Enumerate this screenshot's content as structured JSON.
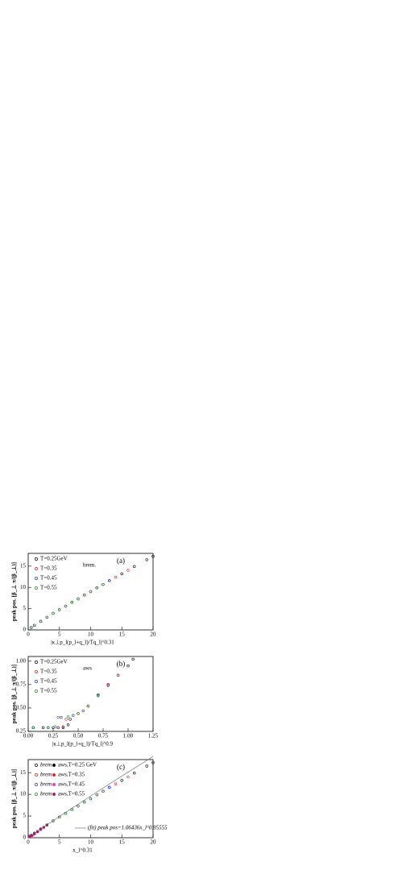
{
  "chart_data": [
    {
      "type": "scatter",
      "panel_label": "(a)",
      "annotation": "brem.",
      "x_label": "|κ⊥p_l(p_l+q_l)/Tq_l|^0.31",
      "y_label": "peak pos. [β_⊥ π/(β_⊥)]",
      "xlim": [
        0,
        20
      ],
      "ylim": [
        0,
        18
      ],
      "xticks": [
        0,
        5,
        10,
        15,
        20
      ],
      "yticks": [
        0,
        5,
        10,
        15
      ],
      "series": [
        {
          "name": "T=0.25GeV",
          "color": "#000000",
          "x": [
            0.5,
            1,
            2,
            3,
            5,
            7,
            9,
            11,
            13,
            15,
            17,
            19,
            20
          ],
          "values": [
            0.56,
            1.06,
            2.02,
            2.95,
            4.75,
            6.5,
            8.2,
            9.9,
            11.6,
            13.2,
            14.9,
            16.5,
            17.3
          ]
        },
        {
          "name": "T=0.35",
          "color": "#e8202a",
          "x": [
            0.5,
            1,
            2,
            4,
            6,
            8,
            10,
            12,
            14,
            16
          ],
          "values": [
            0.56,
            1.06,
            2.02,
            3.9,
            5.6,
            7.3,
            9.0,
            10.7,
            12.4,
            14.0
          ]
        },
        {
          "name": "T=0.45",
          "color": "#2030d0",
          "x": [
            0.5,
            1,
            2,
            4,
            6,
            8,
            10,
            12,
            13
          ],
          "values": [
            0.56,
            1.06,
            2.02,
            3.9,
            5.6,
            7.3,
            9.0,
            10.7,
            11.6
          ]
        },
        {
          "name": "T=0.55",
          "color": "#2a8a2a",
          "x": [
            0.5,
            1,
            2,
            3,
            4,
            5,
            6,
            7,
            8,
            9,
            10,
            11,
            12
          ],
          "values": [
            0.56,
            1.06,
            2.02,
            2.95,
            3.9,
            4.75,
            5.6,
            6.5,
            7.3,
            8.2,
            9.0,
            9.9,
            10.7
          ]
        }
      ]
    },
    {
      "type": "scatter",
      "panel_label": "(b)",
      "annotation": "aws",
      "x_label": "|κ⊥p_l(p_l+q_l)/Tq_l|^0.9",
      "y_label": "peak pos. [β_⊥ π/(β_⊥)]",
      "xlim": [
        0,
        1.25
      ],
      "ylim": [
        0.25,
        1.05
      ],
      "xticks": [
        {
          "value": 0,
          "label": "0.00"
        },
        0.25,
        {
          "value": 0.5,
          "label": "0.50"
        },
        0.75,
        {
          "value": 1,
          "label": "1.00"
        },
        1.25
      ],
      "yticks": [
        0.25,
        {
          "value": 0.5,
          "label": "0.50"
        },
        0.75,
        {
          "value": 1,
          "label": "1.00"
        }
      ],
      "series": [
        {
          "name": "T=0.25GeV",
          "color": "#000000",
          "x": [
            0.05,
            0.15,
            0.25,
            0.35,
            0.4,
            0.42,
            0.5,
            0.6,
            0.7,
            0.8,
            0.9,
            1.0,
            1.05
          ],
          "values": [
            0.29,
            0.29,
            0.29,
            0.29,
            0.32,
            0.38,
            0.44,
            0.52,
            0.64,
            0.75,
            0.85,
            0.95,
            1.02
          ]
        },
        {
          "name": "T=0.35",
          "color": "#e8202a",
          "x": [
            0.05,
            0.2,
            0.3,
            0.35,
            0.38,
            0.5,
            0.6,
            0.8,
            0.9
          ],
          "values": [
            0.29,
            0.29,
            0.29,
            0.3,
            0.38,
            0.44,
            0.52,
            0.75,
            0.85
          ]
        },
        {
          "name": "T=0.45",
          "color": "#2030d0",
          "x": [
            0.05,
            0.2,
            0.3,
            0.33,
            0.45,
            0.55,
            0.7,
            0.8
          ],
          "values": [
            0.29,
            0.29,
            0.29,
            0.4,
            0.42,
            0.47,
            0.64,
            0.74
          ]
        },
        {
          "name": "T=0.55",
          "color": "#2a8a2a",
          "x": [
            0.05,
            0.2,
            0.27,
            0.3,
            0.4,
            0.5,
            0.6,
            0.7
          ],
          "values": [
            0.29,
            0.29,
            0.3,
            0.4,
            0.41,
            0.44,
            0.52,
            0.63
          ]
        }
      ]
    },
    {
      "type": "scatter",
      "panel_label": "(c)",
      "annotation": "(fit) peak pos=1.06436x_l^0.95555",
      "x_label": "x_l^0.31",
      "y_label": "peak pos. [β_⊥ π/(β_⊥)]",
      "xlim": [
        0,
        20
      ],
      "ylim": [
        0,
        18
      ],
      "xticks": [
        0,
        5,
        10,
        15,
        20
      ],
      "yticks": [
        0,
        5,
        10,
        15
      ],
      "fit": {
        "x": [
          0,
          5,
          10,
          15,
          20
        ],
        "values": [
          0,
          4.9,
          9.6,
          14.2,
          18.7
        ],
        "color": "#777777"
      },
      "series": [
        {
          "name": "brem",
          "color": "#000000",
          "x": [
            0.5,
            1,
            2,
            3,
            5,
            7,
            9,
            11,
            13,
            15,
            17,
            19,
            20
          ],
          "values": [
            0.56,
            1.06,
            2.02,
            2.95,
            4.75,
            6.5,
            8.2,
            9.9,
            11.6,
            13.2,
            14.9,
            16.5,
            17.3
          ]
        },
        {
          "name": "brem",
          "color": "#e8202a",
          "x": [
            0.5,
            2,
            4,
            6,
            8,
            10,
            12,
            14,
            16
          ],
          "values": [
            0.56,
            2.02,
            3.9,
            5.6,
            7.3,
            9.0,
            10.7,
            12.4,
            14.0
          ]
        },
        {
          "name": "brem",
          "color": "#2030d0",
          "x": [
            0.5,
            2,
            4,
            6,
            8,
            10,
            12,
            13
          ],
          "values": [
            0.56,
            2.02,
            3.9,
            5.6,
            7.3,
            9.0,
            10.7,
            11.6
          ]
        },
        {
          "name": "brem",
          "color": "#2a8a2a",
          "x": [
            0.5,
            1,
            2,
            3,
            4,
            5,
            6,
            7,
            8,
            9,
            10,
            11,
            12
          ],
          "values": [
            0.56,
            1.06,
            2.02,
            2.95,
            3.9,
            4.75,
            5.6,
            6.5,
            7.3,
            8.2,
            9.0,
            9.9,
            10.7
          ]
        },
        {
          "name": "aws,T=0.25 GeV",
          "color": "#000000",
          "x": [
            0.2,
            0.6,
            1.0,
            1.5
          ],
          "values": [
            0.3,
            0.5,
            0.9,
            1.4
          ]
        },
        {
          "name": "aws,T=0.35",
          "color": "#e8202a",
          "x": [
            0.2,
            0.6,
            1.0,
            1.5,
            2.0
          ],
          "values": [
            0.3,
            0.5,
            0.9,
            1.4,
            1.9
          ]
        },
        {
          "name": "aws,T=0.45",
          "color": "#e040c0",
          "x": [
            0.2,
            0.6,
            1.0,
            1.5,
            2.0,
            2.5
          ],
          "values": [
            0.3,
            0.5,
            0.9,
            1.4,
            1.9,
            2.4
          ]
        },
        {
          "name": "aws,T=0.55",
          "color": "#a02070",
          "x": [
            0.2,
            0.6,
            1.0,
            1.5,
            2.0,
            2.5,
            3.0
          ],
          "values": [
            0.3,
            0.5,
            0.9,
            1.4,
            1.9,
            2.4,
            2.9
          ]
        }
      ]
    }
  ]
}
